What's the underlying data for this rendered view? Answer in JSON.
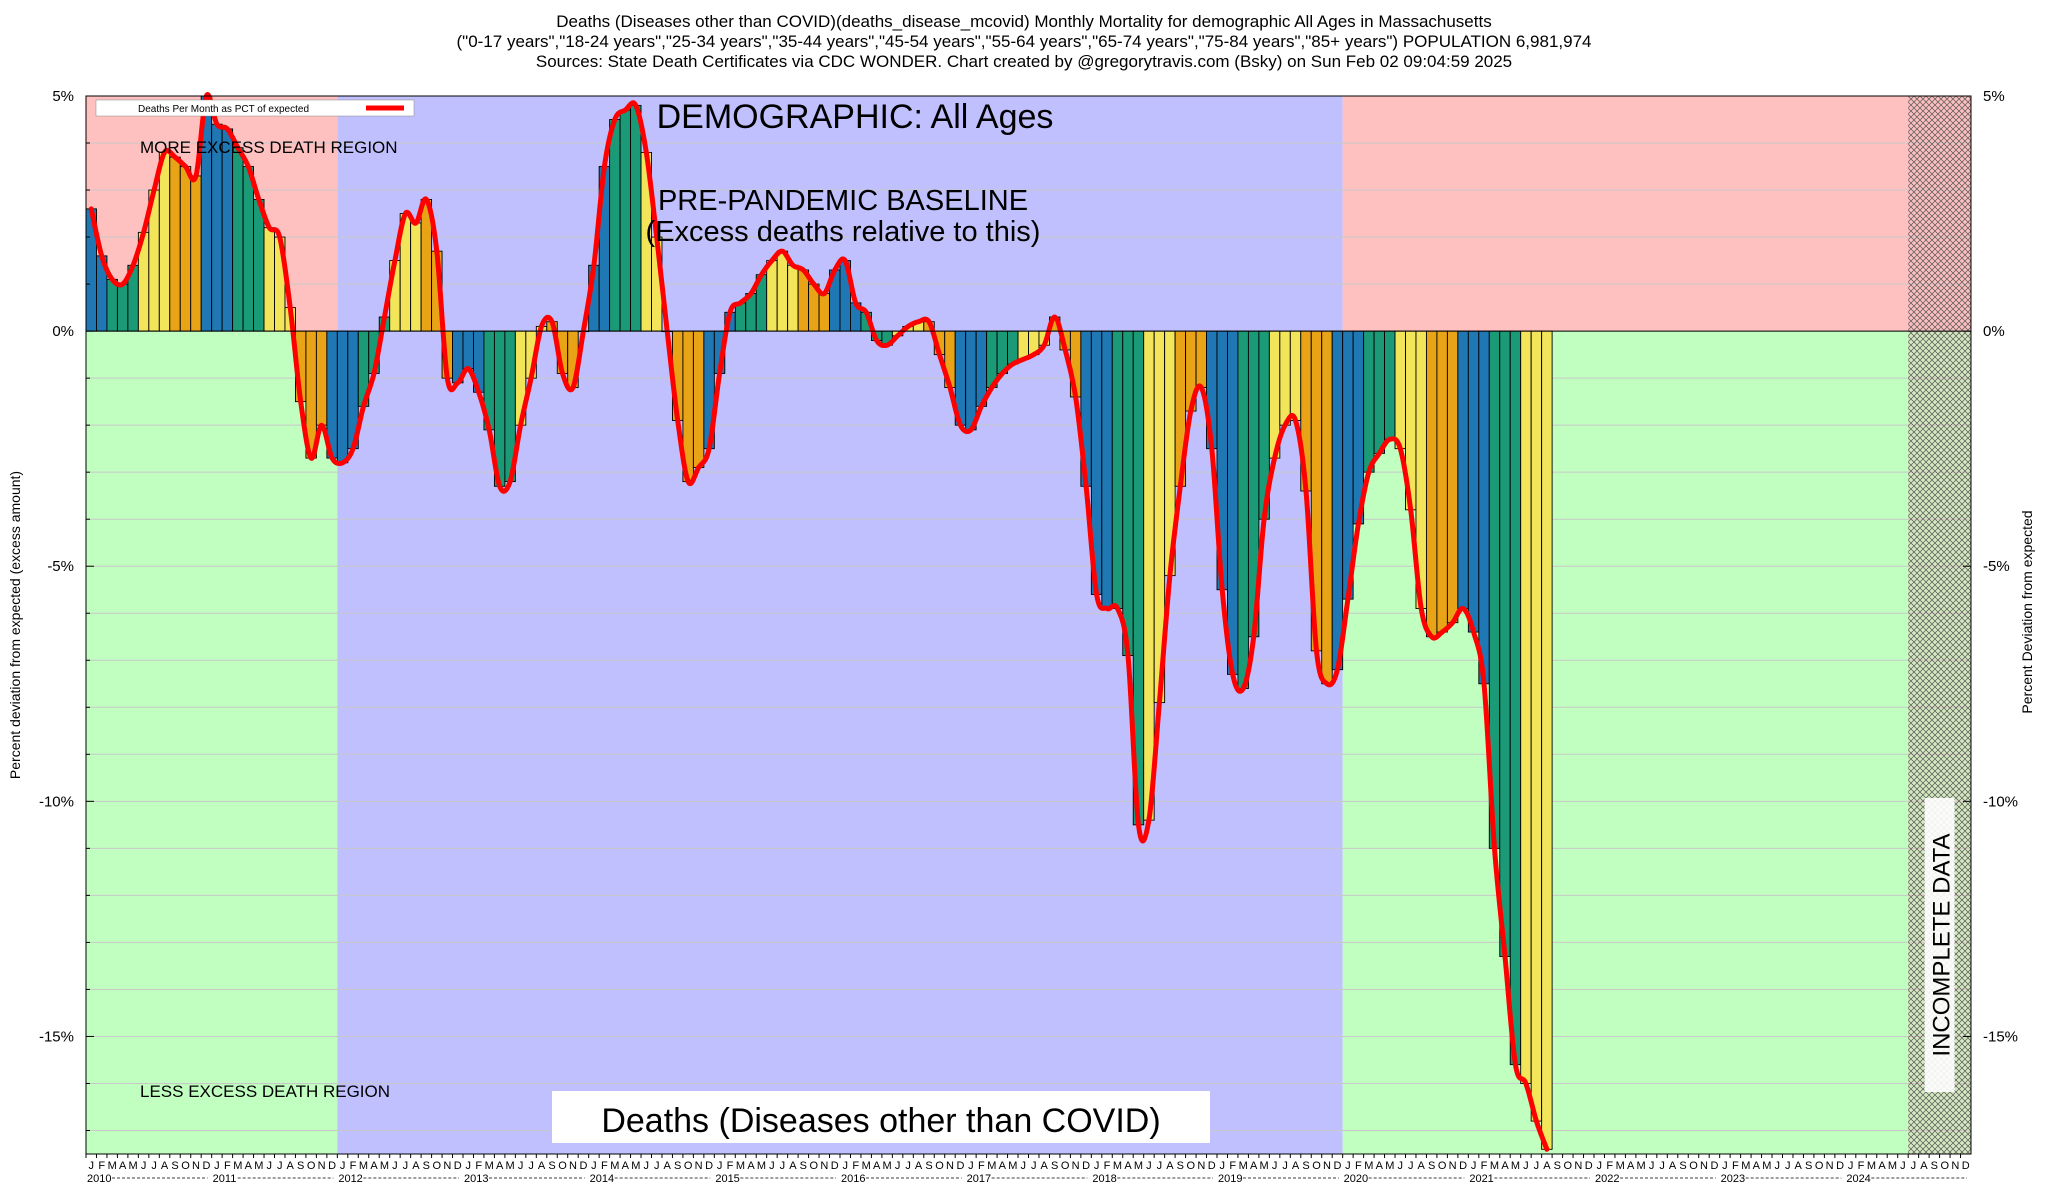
{
  "header": {
    "title_line1": "Deaths (Diseases other than COVID)(deaths_disease_mcovid) Monthly Mortality for demographic All Ages in Massachusetts",
    "title_line2": "(\"0-17 years\",\"18-24 years\",\"25-34 years\",\"35-44 years\",\"45-54 years\",\"55-64 years\",\"65-74 years\",\"75-84 years\",\"85+ years\") POPULATION 6,981,974",
    "title_line3": "Sources: State Death Certificates via CDC WONDER.              Chart created by @gregorytravis.com (Bsky) on Sun Feb 02 09:04:59 2025"
  },
  "chart_data": {
    "type": "bar",
    "title": "Deaths (Diseases other than COVID)(deaths_disease_mcovid) Monthly Mortality for demographic All Ages in Massachusetts",
    "ylabel_left": "Percent deviation from expected (excess amount)",
    "ylabel_right": "Percent Deviation from expected",
    "ylim": [
      -17.5,
      5
    ],
    "yticks": [
      5,
      0,
      -5,
      -10,
      -15
    ],
    "ytick_labels": [
      "5%",
      "0%",
      "-5%",
      "-10%",
      "-15%"
    ],
    "grid": true,
    "legend": {
      "position": "top-left",
      "label": "Deaths Per Month as PCT of expected",
      "color": "#ff0000"
    },
    "annotations": {
      "demographic": "DEMOGRAPHIC: All Ages",
      "baseline_line1": "PRE-PANDEMIC BASELINE",
      "baseline_line2": "(Excess deaths relative to this)",
      "more_excess": "MORE EXCESS DEATH REGION",
      "less_excess": "LESS EXCESS DEATH REGION",
      "bottom_title": "Deaths (Diseases other than COVID)",
      "incomplete": "INCOMPLETE DATA"
    },
    "months": [
      "J",
      "F",
      "M",
      "A",
      "M",
      "J",
      "J",
      "A",
      "S",
      "O",
      "N",
      "D"
    ],
    "years": [
      "2010",
      "2011",
      "2012",
      "2013",
      "2014",
      "2015",
      "2016",
      "2017",
      "2018",
      "2019",
      "2020",
      "2021",
      "2022",
      "2023",
      "2024"
    ],
    "start": "2010-01",
    "baseline_period": [
      "2012-01",
      "2019-12"
    ],
    "incomplete_period": [
      "2024-07",
      "2024-12"
    ],
    "colors": {
      "more_region": "#ffc0c0",
      "less_region": "#c0ffc0",
      "baseline_region": "#c0c0ff",
      "line": "#ff0000",
      "bar_blue": "#1f77b4",
      "bar_green": "#1a9a76",
      "bar_yellow": "#f2e55a",
      "bar_orange": "#e8a316"
    },
    "values": [
      2.6,
      1.6,
      1.1,
      1.0,
      1.4,
      2.1,
      3.0,
      3.8,
      3.7,
      3.5,
      3.3,
      5.0,
      4.4,
      4.3,
      3.9,
      3.5,
      2.8,
      2.2,
      2.0,
      0.5,
      -1.5,
      -2.7,
      -2.0,
      -2.7,
      -2.8,
      -2.5,
      -1.6,
      -0.9,
      0.3,
      1.5,
      2.5,
      2.3,
      2.8,
      1.7,
      -1.0,
      -1.1,
      -0.8,
      -1.3,
      -2.1,
      -3.3,
      -3.2,
      -2.0,
      -1.0,
      0.1,
      0.2,
      -0.9,
      -1.2,
      0.0,
      1.4,
      3.5,
      4.5,
      4.7,
      4.8,
      3.8,
      2.0,
      0.0,
      -1.9,
      -3.2,
      -2.9,
      -2.5,
      -0.9,
      0.4,
      0.6,
      0.8,
      1.2,
      1.5,
      1.7,
      1.4,
      1.3,
      1.0,
      0.8,
      1.3,
      1.5,
      0.6,
      0.4,
      -0.2,
      -0.3,
      -0.1,
      0.1,
      0.2,
      0.2,
      -0.5,
      -1.2,
      -2.0,
      -2.1,
      -1.6,
      -1.2,
      -0.9,
      -0.7,
      -0.6,
      -0.5,
      -0.3,
      0.3,
      -0.4,
      -1.4,
      -3.3,
      -5.6,
      -5.9,
      -5.9,
      -6.9,
      -10.5,
      -10.4,
      -7.9,
      -5.2,
      -3.3,
      -1.7,
      -1.2,
      -2.5,
      -5.5,
      -7.3,
      -7.6,
      -6.5,
      -4.0,
      -2.7,
      -2.0,
      -1.9,
      -3.4,
      -6.8,
      -7.5,
      -7.2,
      -5.7,
      -4.1,
      -3.0,
      -2.6,
      -2.3,
      -2.5,
      -3.8,
      -5.9,
      -6.5,
      -6.4,
      -6.2,
      -5.9,
      -6.4,
      -7.5,
      -11.0,
      -13.3,
      -15.6,
      -16.0,
      -16.8,
      -17.4
    ]
  }
}
